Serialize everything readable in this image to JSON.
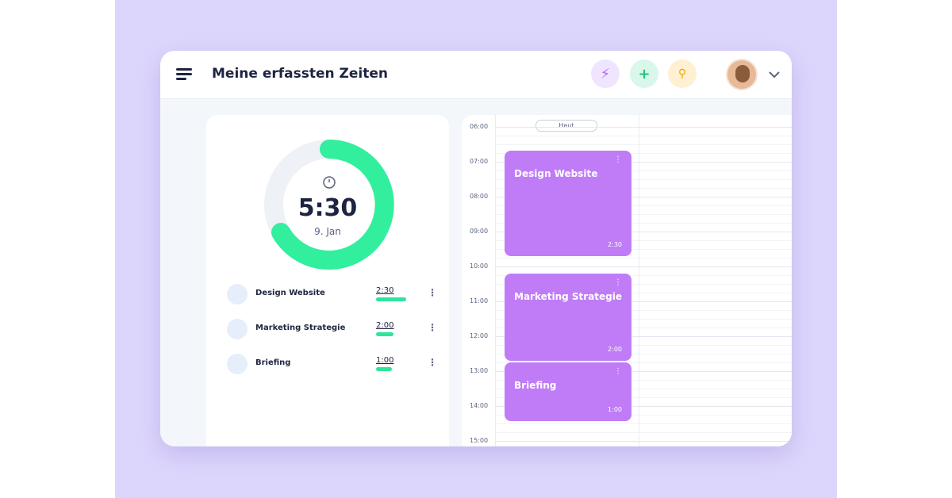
{
  "header": {
    "title": "Meine erfassten Zeiten"
  },
  "summary": {
    "total": "5:30",
    "date": "9. Jan"
  },
  "tasks": [
    {
      "name": "Design Website",
      "duration": "2:30"
    },
    {
      "name": "Marketing Strategie",
      "duration": "2:00"
    },
    {
      "name": "Briefing",
      "duration": "1:00"
    }
  ],
  "calendar": {
    "today": "Heut",
    "hours": [
      "06:00",
      "07:00",
      "08:00",
      "09:00",
      "10:00",
      "11:00",
      "12:00",
      "13:00",
      "14:00",
      "15:00"
    ],
    "events": [
      {
        "title": "Design Website",
        "duration": "2:30"
      },
      {
        "title": "Marketing Strategie",
        "duration": "2:00"
      },
      {
        "title": "Briefing",
        "duration": "1:00"
      }
    ]
  }
}
